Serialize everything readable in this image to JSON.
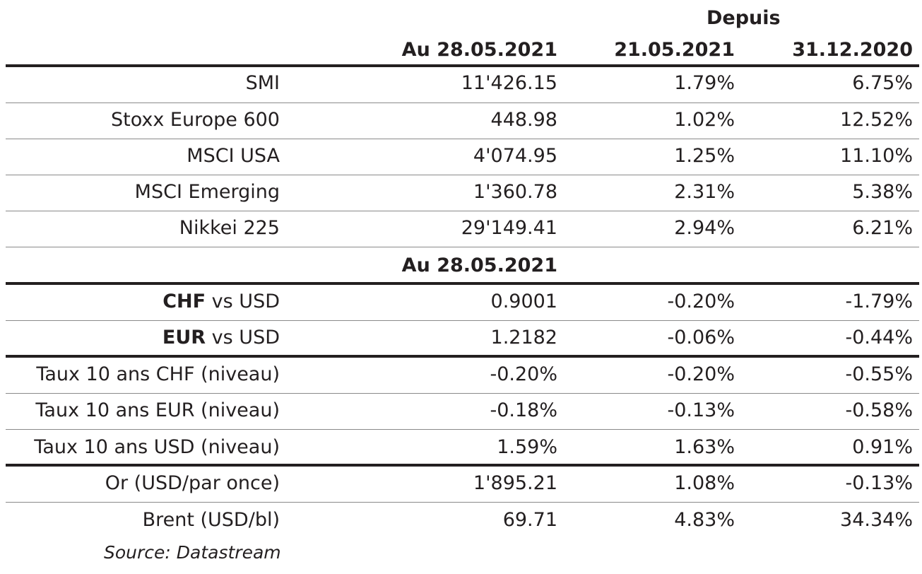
{
  "header": {
    "since_label": "Depuis",
    "col_date": "Au 28.05.2021",
    "col_week": "21.05.2021",
    "col_ytd": "31.12.2020"
  },
  "equities": [
    {
      "label": "SMI",
      "value": "11'426.15",
      "week": "1.79%",
      "ytd": "6.75%"
    },
    {
      "label": "Stoxx Europe 600",
      "value": "448.98",
      "week": "1.02%",
      "ytd": "12.52%"
    },
    {
      "label": "MSCI USA",
      "value": "4'074.95",
      "week": "1.25%",
      "ytd": "11.10%"
    },
    {
      "label": "MSCI Emerging",
      "value": "1'360.78",
      "week": "2.31%",
      "ytd": "5.38%"
    },
    {
      "label": "Nikkei 225",
      "value": "29'149.41",
      "week": "2.94%",
      "ytd": "6.21%"
    }
  ],
  "subheader": {
    "col_date": "Au 28.05.2021"
  },
  "fx": [
    {
      "bold": "CHF",
      "rest": " vs USD",
      "value": "0.9001",
      "week": "-0.20%",
      "ytd": "-1.79%"
    },
    {
      "bold": "EUR",
      "rest": " vs USD",
      "value": "1.2182",
      "week": "-0.06%",
      "ytd": "-0.44%"
    }
  ],
  "rates": [
    {
      "label": "Taux 10 ans CHF (niveau)",
      "value": "-0.20%",
      "week": "-0.20%",
      "ytd": "-0.55%"
    },
    {
      "label": "Taux 10 ans EUR (niveau)",
      "value": "-0.18%",
      "week": "-0.13%",
      "ytd": "-0.58%"
    },
    {
      "label": "Taux 10 ans USD (niveau)",
      "value": "1.59%",
      "week": "1.63%",
      "ytd": "0.91%"
    }
  ],
  "commodities": [
    {
      "label": "Or (USD/par once)",
      "value": "1'895.21",
      "week": "1.08%",
      "ytd": "-0.13%"
    },
    {
      "label": "Brent (USD/bl)",
      "value": "69.71",
      "week": "4.83%",
      "ytd": "34.34%"
    }
  ],
  "source": "Source: Datastream"
}
